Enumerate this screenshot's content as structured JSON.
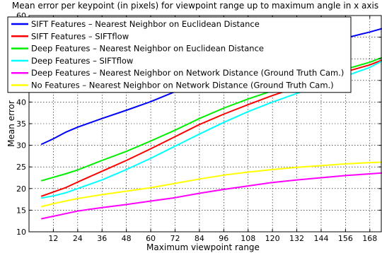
{
  "chart_data": {
    "type": "line",
    "title": "Mean error per keypoint (in pixels) for viewpoint range up to maximum angle in x axis",
    "xlabel": "Maximum viewpoint range",
    "ylabel": "Mean error",
    "xlim": [
      0,
      174
    ],
    "ylim": [
      10,
      60
    ],
    "xticks": [
      12,
      24,
      36,
      48,
      60,
      72,
      84,
      96,
      108,
      120,
      132,
      144,
      156,
      168
    ],
    "yticks": [
      10,
      15,
      20,
      25,
      30,
      35,
      40,
      45,
      50,
      55,
      60
    ],
    "grid": true,
    "legend_position": "top-left",
    "x": [
      6,
      12,
      18,
      24,
      36,
      48,
      60,
      72,
      84,
      96,
      108,
      120,
      132,
      144,
      156,
      168,
      174
    ],
    "series": [
      {
        "name": "SIFT Features – Nearest Neighbor on Euclidean Distance",
        "color": "#0000ff",
        "values": [
          30.2,
          31.5,
          33.0,
          34.2,
          36.2,
          38.1,
          40.1,
          42.4,
          44.5,
          46.2,
          48.0,
          49.8,
          51.5,
          53.2,
          54.8,
          56.2,
          57.0
        ]
      },
      {
        "name": "SIFT Features – SIFTflow",
        "color": "#ff0000",
        "values": [
          18.2,
          19.2,
          20.2,
          21.5,
          24.0,
          26.5,
          29.2,
          32.0,
          34.8,
          37.2,
          39.4,
          41.5,
          43.4,
          45.2,
          47.0,
          48.6,
          49.7
        ]
      },
      {
        "name": "Deep Features – Nearest Neighbor on Euclidean Distance",
        "color": "#00ee00",
        "values": [
          21.8,
          22.6,
          23.4,
          24.3,
          26.5,
          28.6,
          31.0,
          33.5,
          36.2,
          38.6,
          40.7,
          42.6,
          44.3,
          46.0,
          47.6,
          49.2,
          50.3
        ]
      },
      {
        "name": "Deep Features – SIFTflow",
        "color": "#00ffff",
        "values": [
          17.8,
          18.3,
          19.0,
          20.0,
          22.0,
          24.4,
          27.0,
          29.8,
          32.6,
          35.3,
          37.8,
          40.0,
          42.0,
          44.0,
          46.0,
          48.0,
          49.5
        ]
      },
      {
        "name": "Deep Features – Nearest Neighbor on Network Distance (Ground Truth Cam.)",
        "color": "#ff00ff",
        "values": [
          13.0,
          13.6,
          14.2,
          14.8,
          15.6,
          16.3,
          17.1,
          17.9,
          18.9,
          19.8,
          20.6,
          21.4,
          22.0,
          22.5,
          23.0,
          23.4,
          23.6
        ]
      },
      {
        "name": "No Features – Nearest Neighbor on Network Distance (Ground Truth Cam.)",
        "color": "#ffff00",
        "values": [
          15.8,
          16.5,
          17.1,
          17.7,
          18.6,
          19.4,
          20.2,
          21.2,
          22.2,
          23.1,
          23.8,
          24.4,
          24.9,
          25.3,
          25.7,
          26.0,
          26.1
        ]
      }
    ]
  }
}
